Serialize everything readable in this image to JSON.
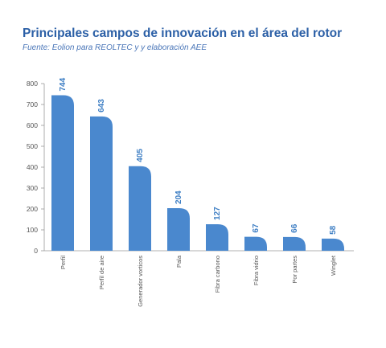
{
  "chart_data": {
    "type": "bar",
    "title": "Principales campos de innovación en el área del rotor",
    "subtitle": "Fuente: Eolion para REOLTEC y y elaboración AEE",
    "categories": [
      "Perfil",
      "Perfil de aire",
      "Generador vorticos",
      "Pala",
      "Fibra carbono",
      "Fibra vidrio",
      "Por partes",
      "Winglet"
    ],
    "values": [
      744,
      643,
      405,
      204,
      127,
      67,
      66,
      58
    ],
    "yticks": [
      0,
      100,
      200,
      300,
      400,
      500,
      600,
      700,
      800
    ],
    "ylim": [
      0,
      800
    ],
    "xlabel": "",
    "ylabel": "",
    "bar_color": "#4a88ce",
    "label_color": "#3f7fc4",
    "title_color": "#2b5fa6"
  }
}
